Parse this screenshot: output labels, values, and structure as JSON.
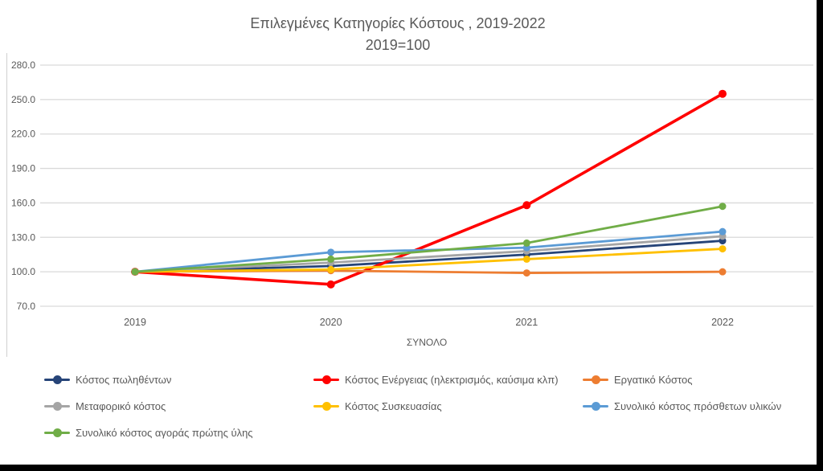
{
  "title": "Επιλεγμένες Κατηγορίες Κόστους , 2019-2022",
  "subtitle": "2019=100",
  "colors": {
    "background": "#FFFFFF",
    "frame_border": "#000000",
    "gridline": "#D9D9D9",
    "axis_line": "#D0D0D0",
    "text": "#595959"
  },
  "chart_data": {
    "type": "line",
    "categories": [
      "2019",
      "2020",
      "2021",
      "2022"
    ],
    "series": [
      {
        "name": "Κόστος πωληθέντων",
        "color": "#264478",
        "values": [
          100,
          105,
          115,
          127
        ]
      },
      {
        "name": "Κόστος Ενέργειας (ηλεκτρισμός, καύσιμα κλπ)",
        "color": "#FF0000",
        "values": [
          100,
          89,
          158,
          255
        ]
      },
      {
        "name": "Εργατικό Κόστος",
        "color": "#ED7D31",
        "values": [
          100,
          101,
          99,
          100
        ]
      },
      {
        "name": "Μεταφορικό κόστος",
        "color": "#A5A5A5",
        "values": [
          100,
          108,
          118,
          131
        ]
      },
      {
        "name": "Κόστος Συσκευασίας",
        "color": "#FFC000",
        "values": [
          100,
          102,
          111,
          120
        ]
      },
      {
        "name": "Συνολικό κόστος πρόσθετων υλικών",
        "color": "#5B9BD5",
        "values": [
          100,
          117,
          121,
          135
        ]
      },
      {
        "name": "Συνολικό κόστος αγοράς πρώτης ύλης",
        "color": "#70AD47",
        "values": [
          100,
          111,
          125,
          157
        ]
      }
    ],
    "xlabel": "ΣΥΝΟΛΟ",
    "ylabel": "",
    "ylim": [
      70,
      280
    ],
    "ytick_step": 30,
    "ytick_labels": [
      "70.0",
      "100.0",
      "130.0",
      "160.0",
      "190.0",
      "220.0",
      "250.0",
      "280.0"
    ],
    "grid": true,
    "legend_position": "bottom"
  }
}
